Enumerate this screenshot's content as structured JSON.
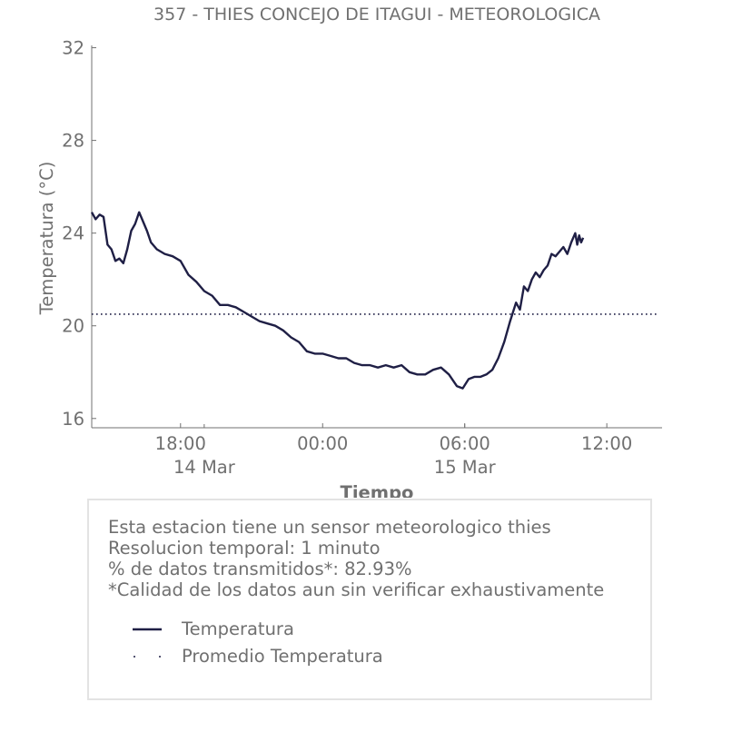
{
  "colors": {
    "line": "#1f1f45",
    "text": "#707070",
    "axis": "#707070",
    "box_border": "#e3e3e3"
  },
  "chart_data": {
    "type": "line",
    "title": "357 - THIES CONCEJO DE ITAGUI - METEOROLOGICA",
    "xlabel": "Tiempo",
    "ylabel": "Temperatura (°C)",
    "ylim": [
      15.6,
      32.1
    ],
    "xlim": [
      "2023-03-14T14:15",
      "2023-03-15T14:20"
    ],
    "yticks": [
      16,
      20,
      24,
      28,
      32
    ],
    "yticklabels": [
      "16",
      "20",
      "24",
      "28",
      "32"
    ],
    "xticks": [
      "2023-03-14T18:00",
      "2023-03-15T00:00",
      "2023-03-15T06:00",
      "2023-03-15T12:00"
    ],
    "xticklabels": [
      "18:00",
      "00:00",
      "06:00",
      "12:00"
    ],
    "date_labels": [
      {
        "x": "2023-03-14T19:00",
        "label": "14 Mar"
      },
      {
        "x": "2023-03-15T06:00",
        "label": "15 Mar"
      }
    ],
    "grid": false,
    "series": [
      {
        "name": "Temperatura",
        "style": "solid",
        "x": [
          "2023-03-14T14:15",
          "2023-03-14T14:25",
          "2023-03-14T14:35",
          "2023-03-14T14:45",
          "2023-03-14T14:55",
          "2023-03-14T15:05",
          "2023-03-14T15:15",
          "2023-03-14T15:25",
          "2023-03-14T15:35",
          "2023-03-14T15:45",
          "2023-03-14T15:55",
          "2023-03-14T16:05",
          "2023-03-14T16:15",
          "2023-03-14T16:25",
          "2023-03-14T16:35",
          "2023-03-14T16:45",
          "2023-03-14T17:00",
          "2023-03-14T17:20",
          "2023-03-14T17:40",
          "2023-03-14T18:00",
          "2023-03-14T18:20",
          "2023-03-14T18:40",
          "2023-03-14T19:00",
          "2023-03-14T19:20",
          "2023-03-14T19:40",
          "2023-03-14T20:00",
          "2023-03-14T20:20",
          "2023-03-14T20:40",
          "2023-03-14T21:00",
          "2023-03-14T21:20",
          "2023-03-14T21:40",
          "2023-03-14T22:00",
          "2023-03-14T22:20",
          "2023-03-14T22:40",
          "2023-03-14T23:00",
          "2023-03-14T23:20",
          "2023-03-14T23:40",
          "2023-03-15T00:00",
          "2023-03-15T00:20",
          "2023-03-15T00:40",
          "2023-03-15T01:00",
          "2023-03-15T01:20",
          "2023-03-15T01:40",
          "2023-03-15T02:00",
          "2023-03-15T02:20",
          "2023-03-15T02:40",
          "2023-03-15T03:00",
          "2023-03-15T03:20",
          "2023-03-15T03:40",
          "2023-03-15T04:00",
          "2023-03-15T04:20",
          "2023-03-15T04:40",
          "2023-03-15T05:00",
          "2023-03-15T05:20",
          "2023-03-15T05:40",
          "2023-03-15T05:55",
          "2023-03-15T06:10",
          "2023-03-15T06:25",
          "2023-03-15T06:40",
          "2023-03-15T06:55",
          "2023-03-15T07:10",
          "2023-03-15T07:25",
          "2023-03-15T07:40",
          "2023-03-15T07:55",
          "2023-03-15T08:10",
          "2023-03-15T08:20",
          "2023-03-15T08:30",
          "2023-03-15T08:40",
          "2023-03-15T08:50",
          "2023-03-15T09:00",
          "2023-03-15T09:10",
          "2023-03-15T09:20",
          "2023-03-15T09:30",
          "2023-03-15T09:40",
          "2023-03-15T09:50",
          "2023-03-15T10:00",
          "2023-03-15T10:10",
          "2023-03-15T10:20",
          "2023-03-15T10:30",
          "2023-03-15T10:40",
          "2023-03-15T10:45",
          "2023-03-15T10:50",
          "2023-03-15T10:55",
          "2023-03-15T11:00"
        ],
        "y": [
          24.9,
          24.6,
          24.8,
          24.7,
          23.5,
          23.3,
          22.8,
          22.9,
          22.7,
          23.3,
          24.1,
          24.4,
          24.9,
          24.5,
          24.1,
          23.6,
          23.3,
          23.1,
          23.0,
          22.8,
          22.2,
          21.9,
          21.5,
          21.3,
          20.9,
          20.9,
          20.8,
          20.6,
          20.4,
          20.2,
          20.1,
          20.0,
          19.8,
          19.5,
          19.3,
          18.9,
          18.8,
          18.8,
          18.7,
          18.6,
          18.6,
          18.4,
          18.3,
          18.3,
          18.2,
          18.3,
          18.2,
          18.3,
          18.0,
          17.9,
          17.9,
          18.1,
          18.2,
          17.9,
          17.4,
          17.3,
          17.7,
          17.8,
          17.8,
          17.9,
          18.1,
          18.6,
          19.3,
          20.2,
          21.0,
          20.7,
          21.7,
          21.5,
          22.0,
          22.3,
          22.1,
          22.4,
          22.6,
          23.1,
          23.0,
          23.2,
          23.4,
          23.1,
          23.6,
          24.0,
          23.5,
          23.9,
          23.6,
          23.8
        ]
      },
      {
        "name": "Promedio Temperatura",
        "style": "dotted",
        "y_value": 20.5
      }
    ]
  },
  "info": {
    "lines": [
      "Esta estacion tiene un sensor meteorologico thies",
      "Resolucion temporal: 1 minuto",
      "% de datos transmitidos*: 82.93%",
      "*Calidad de los datos aun sin verificar exhaustivamente"
    ]
  },
  "legend": {
    "items": [
      {
        "label": "Temperatura",
        "style": "solid"
      },
      {
        "label": "Promedio Temperatura",
        "style": "dotted"
      }
    ]
  }
}
